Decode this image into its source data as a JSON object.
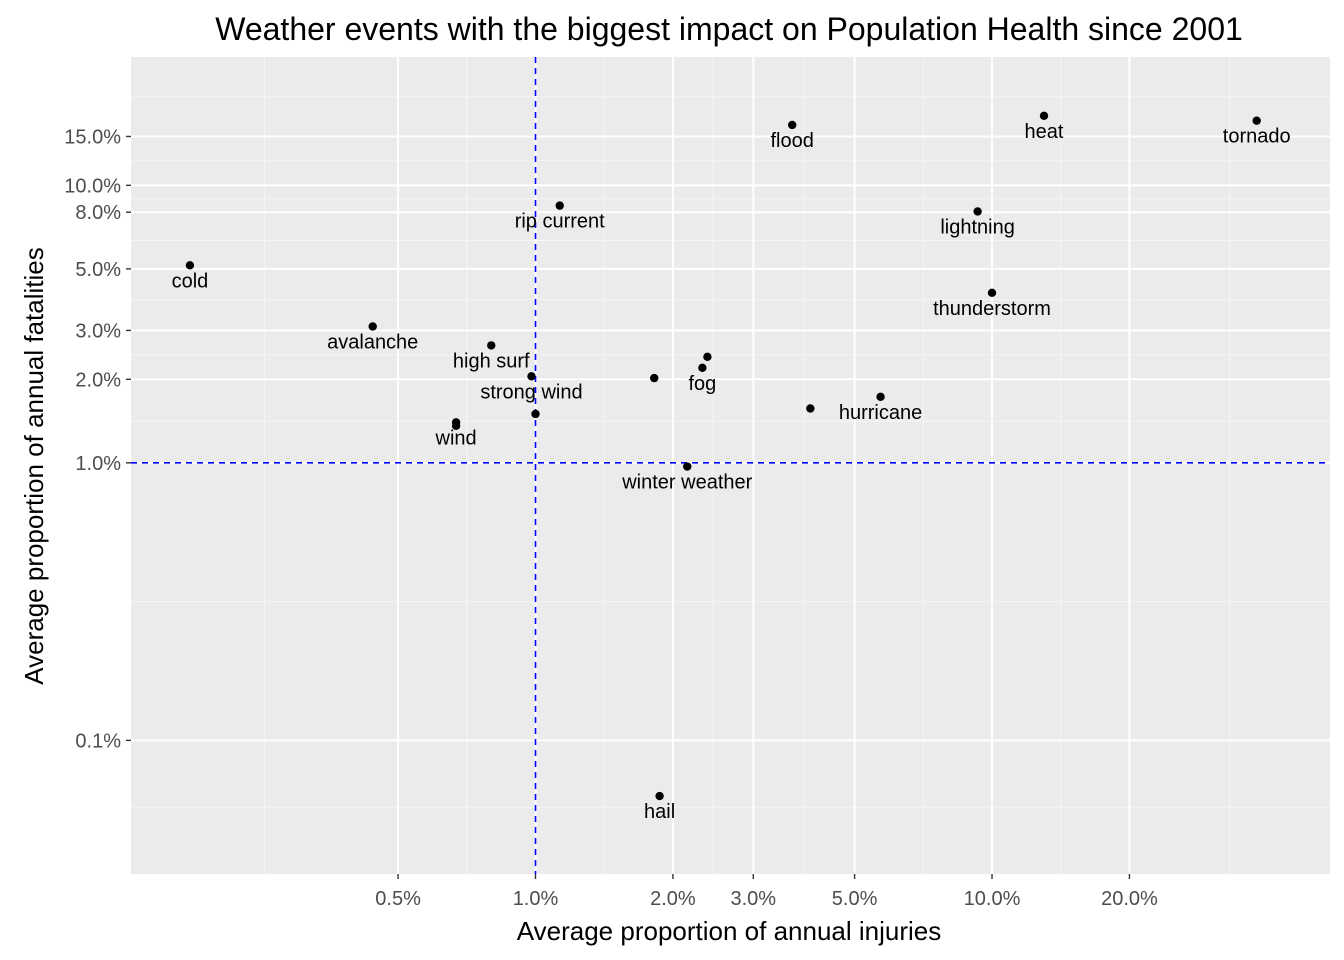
{
  "chart_data": {
    "type": "scatter",
    "title": "Weather events with the biggest impact on Population Health since 2001",
    "xlabel": "Average proportion of annual injuries",
    "ylabel": "Average proportion of annual fatalities",
    "x_scale": "log10",
    "y_scale": "log10",
    "xlim": [
      0.0013,
      0.55
    ],
    "ylim": [
      0.00033,
      0.29
    ],
    "x_ticks": [
      {
        "value": 0.005,
        "label": "0.5%"
      },
      {
        "value": 0.01,
        "label": "1.0%"
      },
      {
        "value": 0.02,
        "label": "2.0%"
      },
      {
        "value": 0.03,
        "label": "3.0%"
      },
      {
        "value": 0.05,
        "label": "5.0%"
      },
      {
        "value": 0.1,
        "label": "10.0%"
      },
      {
        "value": 0.2,
        "label": "20.0%"
      }
    ],
    "y_ticks": [
      {
        "value": 0.001,
        "label": "0.1%"
      },
      {
        "value": 0.01,
        "label": "1.0%"
      },
      {
        "value": 0.02,
        "label": "2.0%"
      },
      {
        "value": 0.03,
        "label": "3.0%"
      },
      {
        "value": 0.05,
        "label": "5.0%"
      },
      {
        "value": 0.08,
        "label": "8.0%"
      },
      {
        "value": 0.1,
        "label": "10.0%"
      },
      {
        "value": 0.15,
        "label": "15.0%"
      }
    ],
    "grid": true,
    "reference_lines": {
      "x": 0.01,
      "y": 0.01,
      "style": "dashed",
      "color": "#0000ff"
    },
    "points": [
      {
        "label": "cold",
        "x": 0.00175,
        "y": 0.0515,
        "label_pos": "below"
      },
      {
        "label": "avalanche",
        "x": 0.0044,
        "y": 0.031,
        "label_pos": "below"
      },
      {
        "label": "high surf",
        "x": 0.008,
        "y": 0.0265,
        "label_pos": "below"
      },
      {
        "label": "wind",
        "x": 0.0067,
        "y": 0.014,
        "label_pos": "below"
      },
      {
        "label": "",
        "x": 0.0067,
        "y": 0.0136,
        "label_pos": "none"
      },
      {
        "label": "strong wind",
        "x": 0.0098,
        "y": 0.0205,
        "label_pos": "below"
      },
      {
        "label": "",
        "x": 0.01,
        "y": 0.015,
        "label_pos": "none"
      },
      {
        "label": "rip current",
        "x": 0.0113,
        "y": 0.0845,
        "label_pos": "below"
      },
      {
        "label": "",
        "x": 0.0182,
        "y": 0.0202,
        "label_pos": "none"
      },
      {
        "label": "fog",
        "x": 0.0232,
        "y": 0.022,
        "label_pos": "below"
      },
      {
        "label": "",
        "x": 0.0238,
        "y": 0.0241,
        "label_pos": "none"
      },
      {
        "label": "winter weather",
        "x": 0.0215,
        "y": 0.0097,
        "label_pos": "below"
      },
      {
        "label": "hail",
        "x": 0.0187,
        "y": 0.00063,
        "label_pos": "below"
      },
      {
        "label": "flood",
        "x": 0.0365,
        "y": 0.165,
        "label_pos": "below"
      },
      {
        "label": "",
        "x": 0.04,
        "y": 0.0157,
        "label_pos": "none"
      },
      {
        "label": "hurricane",
        "x": 0.057,
        "y": 0.0173,
        "label_pos": "below"
      },
      {
        "label": "lightning",
        "x": 0.093,
        "y": 0.0805,
        "label_pos": "below"
      },
      {
        "label": "thunderstorm",
        "x": 0.1,
        "y": 0.041,
        "label_pos": "below"
      },
      {
        "label": "heat",
        "x": 0.13,
        "y": 0.178,
        "label_pos": "below"
      },
      {
        "label": "tornado",
        "x": 0.38,
        "y": 0.171,
        "label_pos": "below"
      }
    ]
  }
}
